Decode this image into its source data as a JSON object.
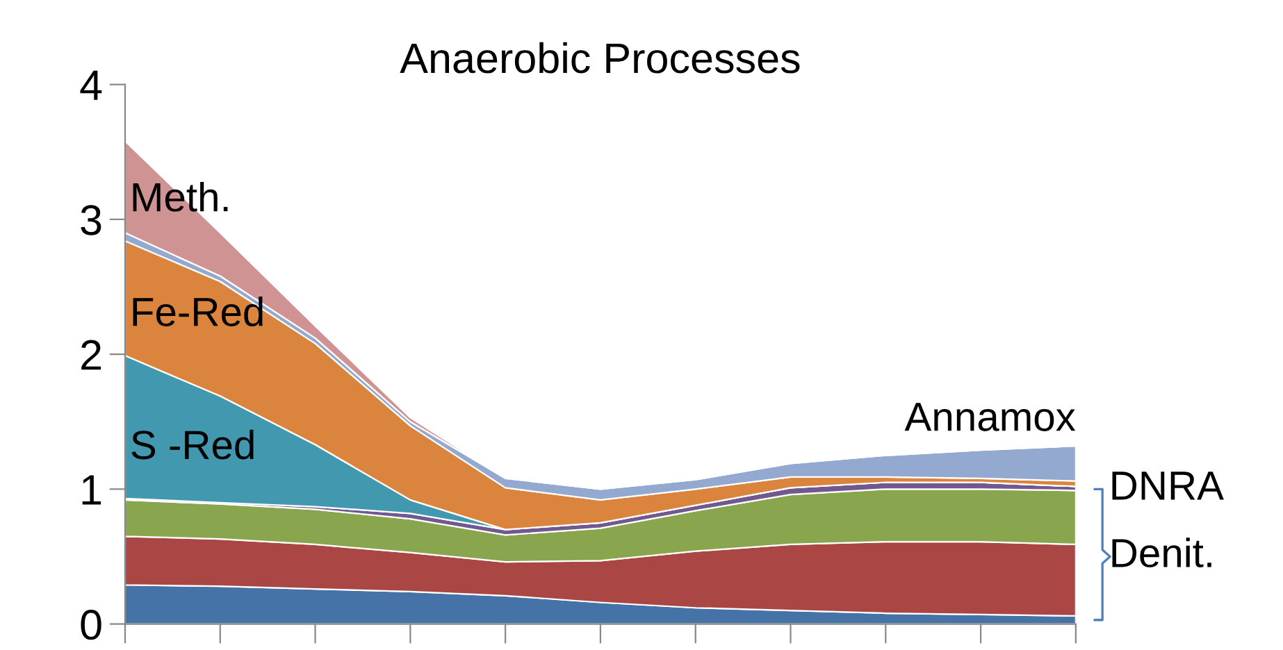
{
  "chart_data": {
    "type": "area",
    "stacked": true,
    "title": "Anaerobic Processes",
    "categories": [
      null,
      null,
      null,
      null,
      null,
      null,
      null,
      null,
      null,
      null,
      null
    ],
    "series": [
      {
        "color": "#4572a7",
        "values": [
          0.29,
          0.28,
          0.26,
          0.24,
          0.21,
          0.16,
          0.12,
          0.1,
          0.08,
          0.07,
          0.06
        ]
      },
      {
        "color": "#aa4643",
        "values": [
          0.36,
          0.35,
          0.33,
          0.29,
          0.25,
          0.31,
          0.42,
          0.49,
          0.53,
          0.54,
          0.53
        ]
      },
      {
        "color": "#89a54e",
        "values": [
          0.27,
          0.26,
          0.26,
          0.25,
          0.2,
          0.24,
          0.3,
          0.37,
          0.39,
          0.39,
          0.4
        ]
      },
      {
        "color": "#71588f",
        "values": [
          0.01,
          0.01,
          0.02,
          0.04,
          0.04,
          0.04,
          0.04,
          0.05,
          0.05,
          0.05,
          0.03
        ]
      },
      {
        "name": "S -Red",
        "color": "#4198af",
        "values": [
          1.06,
          0.79,
          0.46,
          0.1,
          0,
          0,
          0,
          0,
          0,
          0,
          0
        ]
      },
      {
        "name": "Fe-Red",
        "color": "#db843d",
        "values": [
          0.85,
          0.85,
          0.75,
          0.55,
          0.31,
          0.17,
          0.12,
          0.08,
          0.04,
          0.03,
          0.04
        ]
      },
      {
        "name": "Annamox",
        "color": "#93a9cf",
        "values": [
          0.06,
          0.04,
          0.04,
          0.03,
          0.07,
          0.08,
          0.07,
          0.1,
          0.16,
          0.21,
          0.26
        ]
      },
      {
        "name": "Meth.",
        "color": "#d09393",
        "values": [
          0.68,
          0.32,
          0.09,
          0.03,
          0,
          0,
          0,
          0,
          0,
          0,
          0
        ]
      }
    ],
    "ylim": [
      0,
      4
    ],
    "yticks": [
      0,
      1,
      2,
      3,
      4
    ],
    "tick_labels": "y",
    "grid": false,
    "legend": false,
    "annotations": [
      "DNRA",
      "Denit."
    ]
  }
}
